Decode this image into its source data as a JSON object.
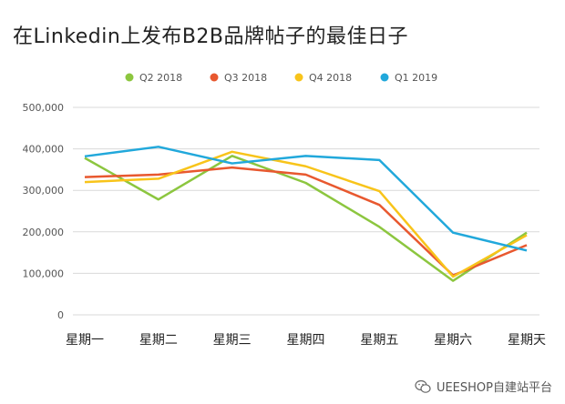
{
  "chart_data": {
    "type": "line",
    "title": "在Linkedin上发布B2B品牌帖子的最佳日子",
    "categories": [
      "星期一",
      "星期二",
      "星期三",
      "星期四",
      "星期五",
      "星期六",
      "星期天"
    ],
    "series": [
      {
        "name": "Q2 2018",
        "color": "#8cc63f",
        "values": [
          378000,
          278000,
          383000,
          318000,
          212000,
          82000,
          198000
        ]
      },
      {
        "name": "Q3 2018",
        "color": "#e8582f",
        "values": [
          332000,
          338000,
          355000,
          338000,
          265000,
          95000,
          168000
        ]
      },
      {
        "name": "Q4 2018",
        "color": "#f8c41a",
        "values": [
          320000,
          328000,
          393000,
          358000,
          298000,
          92000,
          192000
        ]
      },
      {
        "name": "Q1 2019",
        "color": "#21a8db",
        "values": [
          382000,
          405000,
          365000,
          383000,
          373000,
          198000,
          155000
        ]
      }
    ],
    "yticks": [
      "0",
      "100,000",
      "200,000",
      "300,000",
      "400,000",
      "500,000"
    ],
    "ylim": [
      0,
      500000
    ],
    "legend_position": "top",
    "grid": true
  },
  "watermark": {
    "text": "UEESHOP自建站平台",
    "icon": "wechat-icon"
  }
}
